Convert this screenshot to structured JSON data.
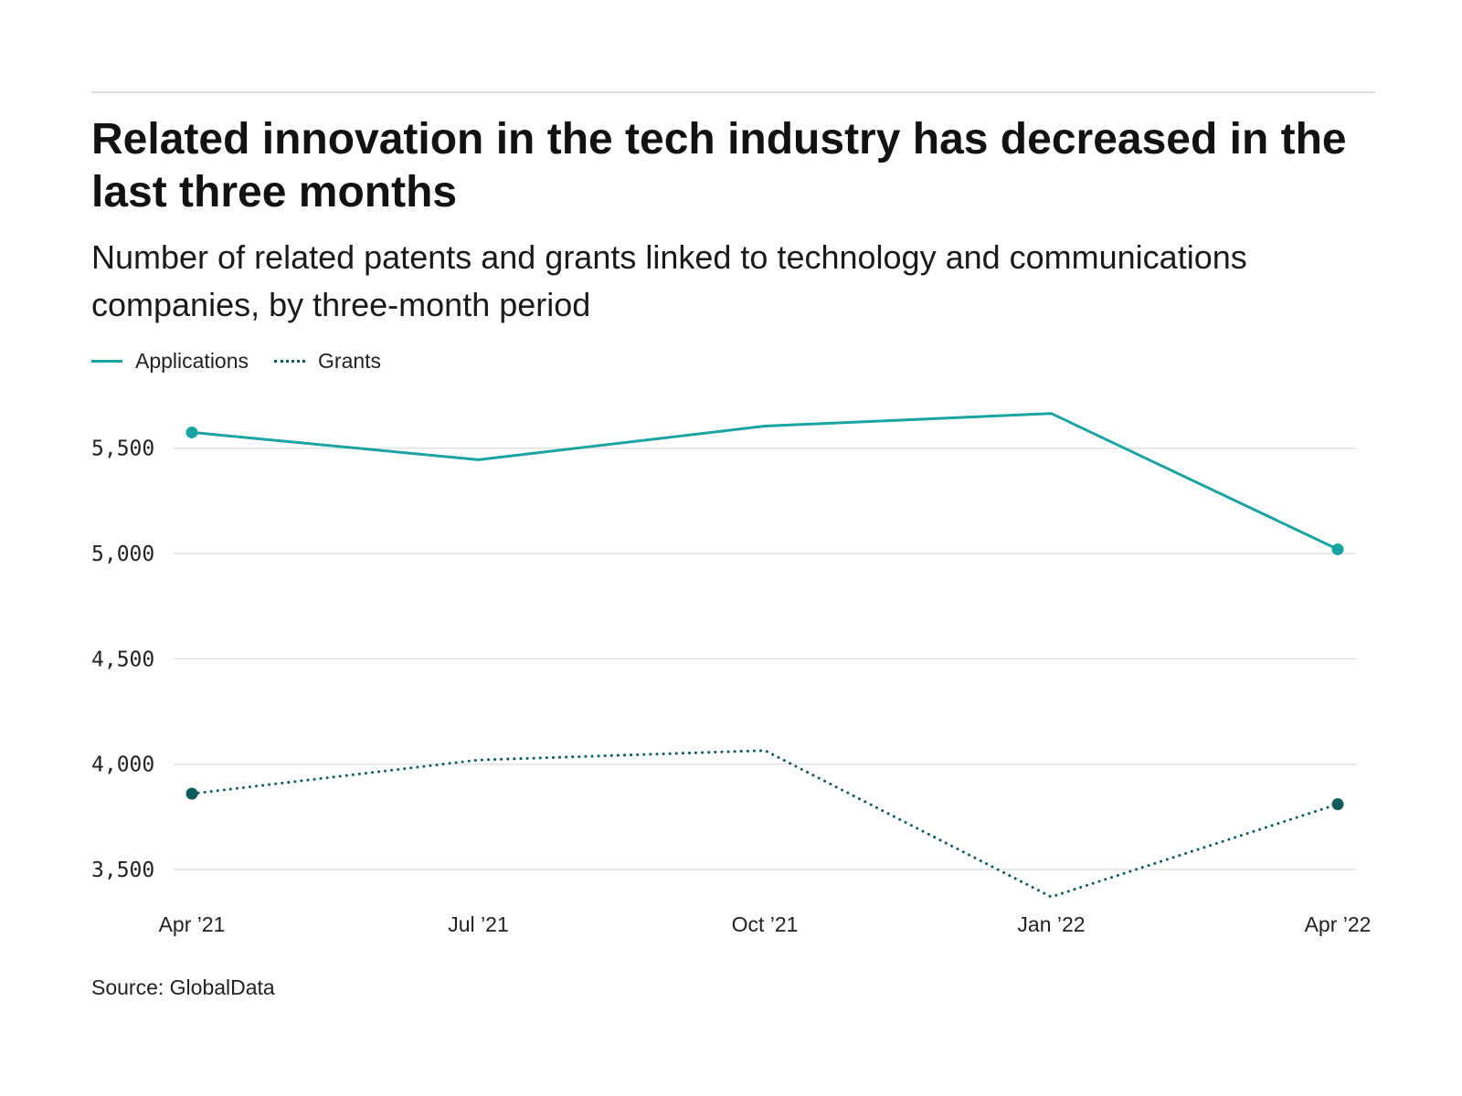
{
  "title": "Related innovation in the tech industry has decreased in the last three months",
  "subtitle": "Number of related patents and grants linked to technology and communications companies, by three-month period",
  "source": "Source: GlobalData",
  "chart_data": {
    "type": "line",
    "categories": [
      "Apr ’21",
      "Jul ’21",
      "Oct ’21",
      "Jan ’22",
      "Apr ’22"
    ],
    "series": [
      {
        "name": "Applications",
        "values": [
          5575,
          5445,
          5605,
          5665,
          5020
        ],
        "color": "#19a4a3",
        "style": "solid",
        "endpoint_markers": true
      },
      {
        "name": "Grants",
        "values": [
          3860,
          4020,
          4065,
          3370,
          3810
        ],
        "color": "#0c5c5e",
        "style": "dotted",
        "endpoint_markers": true
      }
    ],
    "yticks": [
      3500,
      4000,
      4500,
      5000,
      5500
    ],
    "ytick_labels": [
      "3,500",
      "4,000",
      "4,500",
      "5,000",
      "5,500"
    ],
    "ylim": [
      3370,
      5720
    ],
    "grid": true,
    "legend": "top-left",
    "xlabel": "",
    "ylabel": ""
  }
}
